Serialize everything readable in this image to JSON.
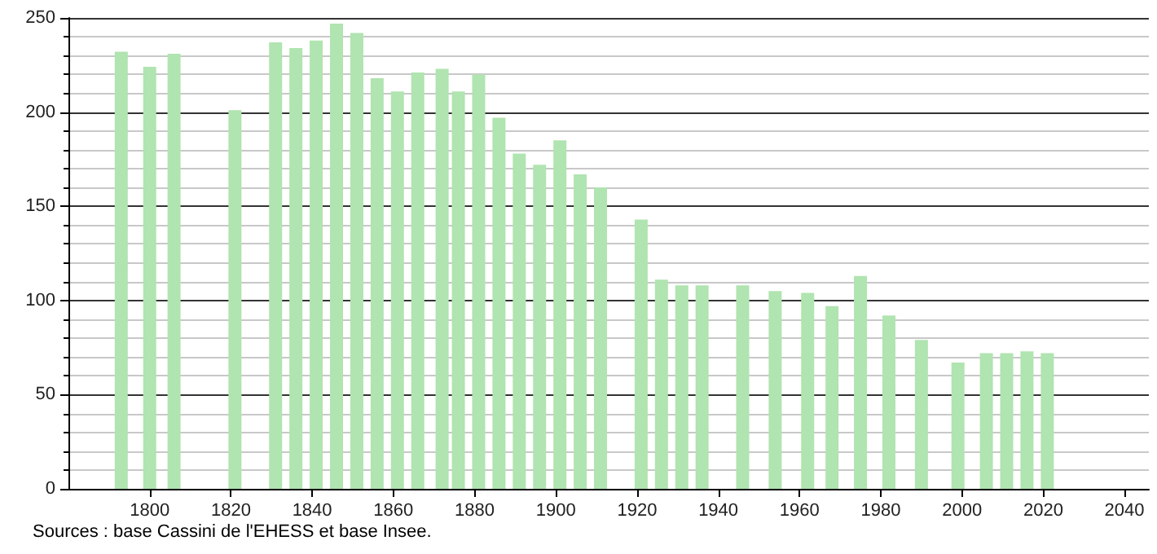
{
  "chart_data": {
    "type": "bar",
    "x": [
      1793,
      1800,
      1806,
      1821,
      1831,
      1836,
      1841,
      1846,
      1851,
      1856,
      1861,
      1866,
      1872,
      1876,
      1881,
      1886,
      1891,
      1896,
      1901,
      1906,
      1911,
      1921,
      1926,
      1931,
      1936,
      1946,
      1954,
      1962,
      1968,
      1975,
      1982,
      1990,
      1999,
      2006,
      2011,
      2016,
      2021
    ],
    "values": [
      232,
      224,
      231,
      201,
      237,
      234,
      238,
      247,
      242,
      218,
      211,
      221,
      223,
      211,
      220,
      197,
      178,
      172,
      185,
      167,
      160,
      143,
      111,
      108,
      108,
      108,
      105,
      104,
      97,
      113,
      92,
      79,
      67,
      72,
      72,
      73,
      72
    ],
    "color": "#b0e4b0",
    "xlim": [
      1780,
      2046
    ],
    "xticks": [
      1800,
      1820,
      1840,
      1860,
      1880,
      1900,
      1920,
      1940,
      1960,
      1980,
      2000,
      2020,
      2040
    ],
    "ylim": [
      0,
      250
    ],
    "yticks": [
      0,
      50,
      100,
      150,
      200,
      250
    ],
    "grid": "y",
    "annotations": [
      "Sources : base Cassini de l'EHESS et base Insee."
    ]
  }
}
